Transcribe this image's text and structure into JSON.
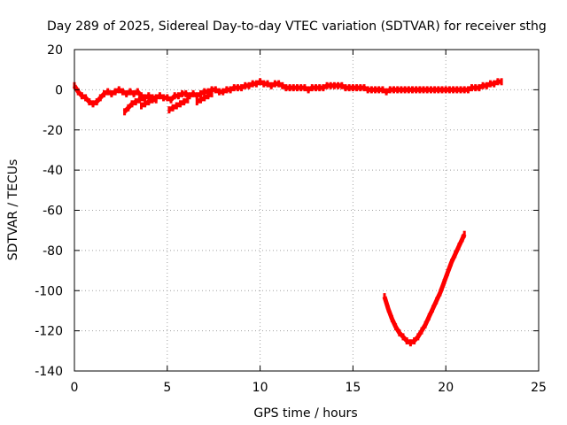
{
  "chart_data": {
    "type": "line",
    "title": "Day 289 of 2025, Sidereal Day-to-day VTEC variation (SDTVAR) for receiver sthg",
    "xlabel": "GPS time / hours",
    "ylabel": "SDTVAR / TECUs",
    "xlim": [
      0,
      25
    ],
    "ylim": [
      -140,
      20
    ],
    "xticks": [
      0,
      5,
      10,
      15,
      20,
      25
    ],
    "yticks": [
      20,
      0,
      -20,
      -40,
      -60,
      -80,
      -100,
      -120,
      -140
    ],
    "grid": true,
    "series": [
      {
        "name": "SDTVAR",
        "color": "#ff0000",
        "segments": [
          [
            [
              0.0,
              2
            ],
            [
              0.2,
              -1
            ],
            [
              0.4,
              -3
            ],
            [
              0.6,
              -4
            ],
            [
              0.8,
              -6
            ],
            [
              1.0,
              -7
            ],
            [
              1.2,
              -6
            ],
            [
              1.4,
              -4
            ],
            [
              1.6,
              -2
            ],
            [
              1.8,
              -1
            ],
            [
              2.0,
              -2
            ],
            [
              2.2,
              -1
            ],
            [
              2.4,
              0
            ],
            [
              2.6,
              -1
            ],
            [
              2.8,
              -2
            ],
            [
              3.0,
              -1
            ],
            [
              3.2,
              -2
            ],
            [
              3.4,
              -1
            ],
            [
              3.6,
              -3
            ],
            [
              3.8,
              -4
            ],
            [
              4.0,
              -3
            ],
            [
              4.2,
              -4
            ],
            [
              4.4,
              -4
            ],
            [
              4.6,
              -3
            ],
            [
              4.8,
              -4
            ],
            [
              5.0,
              -4
            ],
            [
              5.2,
              -5
            ],
            [
              5.4,
              -3
            ],
            [
              5.6,
              -3
            ],
            [
              5.8,
              -2
            ],
            [
              6.0,
              -2
            ],
            [
              6.2,
              -3
            ],
            [
              6.4,
              -2
            ],
            [
              6.6,
              -3
            ],
            [
              6.8,
              -2
            ],
            [
              7.0,
              -1
            ],
            [
              7.2,
              -1
            ],
            [
              7.4,
              0
            ],
            [
              7.6,
              0
            ],
            [
              7.8,
              -1
            ],
            [
              8.0,
              -1
            ],
            [
              8.2,
              0
            ],
            [
              8.4,
              0
            ],
            [
              8.6,
              1
            ],
            [
              8.8,
              1
            ],
            [
              9.0,
              1
            ],
            [
              9.2,
              2
            ],
            [
              9.4,
              2
            ],
            [
              9.6,
              3
            ],
            [
              9.8,
              3
            ],
            [
              10.0,
              4
            ],
            [
              10.2,
              3
            ],
            [
              10.4,
              3
            ],
            [
              10.6,
              2
            ],
            [
              10.8,
              3
            ],
            [
              11.0,
              3
            ],
            [
              11.2,
              2
            ],
            [
              11.4,
              1
            ],
            [
              11.6,
              1
            ],
            [
              11.8,
              1
            ],
            [
              12.0,
              1
            ],
            [
              12.2,
              1
            ],
            [
              12.4,
              1
            ],
            [
              12.6,
              0
            ],
            [
              12.8,
              1
            ],
            [
              13.0,
              1
            ],
            [
              13.2,
              1
            ],
            [
              13.4,
              1
            ],
            [
              13.6,
              2
            ],
            [
              13.8,
              2
            ],
            [
              14.0,
              2
            ],
            [
              14.2,
              2
            ],
            [
              14.4,
              2
            ],
            [
              14.6,
              1
            ],
            [
              14.8,
              1
            ],
            [
              15.0,
              1
            ],
            [
              15.2,
              1
            ],
            [
              15.4,
              1
            ],
            [
              15.6,
              1
            ],
            [
              15.8,
              0
            ],
            [
              16.0,
              0
            ],
            [
              16.2,
              0
            ],
            [
              16.4,
              0
            ],
            [
              16.6,
              0
            ],
            [
              16.8,
              -1
            ],
            [
              17.0,
              0
            ],
            [
              17.2,
              0
            ],
            [
              17.4,
              0
            ],
            [
              17.6,
              0
            ],
            [
              17.8,
              0
            ],
            [
              18.0,
              0
            ],
            [
              18.2,
              0
            ],
            [
              18.4,
              0
            ],
            [
              18.6,
              0
            ],
            [
              18.8,
              0
            ],
            [
              19.0,
              0
            ],
            [
              19.2,
              0
            ],
            [
              19.4,
              0
            ],
            [
              19.6,
              0
            ],
            [
              19.8,
              0
            ],
            [
              20.0,
              0
            ],
            [
              20.2,
              0
            ],
            [
              20.4,
              0
            ],
            [
              20.6,
              0
            ],
            [
              20.8,
              0
            ],
            [
              21.0,
              0
            ],
            [
              21.2,
              0
            ],
            [
              21.4,
              1
            ],
            [
              21.6,
              1
            ],
            [
              21.8,
              1
            ],
            [
              22.0,
              2
            ],
            [
              22.2,
              2
            ],
            [
              22.4,
              3
            ],
            [
              22.6,
              3
            ],
            [
              22.8,
              4
            ],
            [
              23.0,
              4
            ]
          ],
          [
            [
              2.7,
              -11
            ],
            [
              2.9,
              -9
            ],
            [
              3.1,
              -7
            ],
            [
              3.3,
              -6
            ],
            [
              3.5,
              -5
            ],
            [
              3.7,
              -4
            ]
          ],
          [
            [
              3.6,
              -8
            ],
            [
              3.8,
              -7
            ],
            [
              4.0,
              -6
            ],
            [
              4.2,
              -5
            ],
            [
              4.4,
              -5
            ]
          ],
          [
            [
              5.1,
              -10
            ],
            [
              5.3,
              -9
            ],
            [
              5.5,
              -8
            ],
            [
              5.7,
              -7
            ],
            [
              5.9,
              -6
            ],
            [
              6.1,
              -5
            ]
          ],
          [
            [
              6.6,
              -6
            ],
            [
              6.8,
              -5
            ],
            [
              7.0,
              -4
            ],
            [
              7.2,
              -3
            ],
            [
              7.4,
              -2
            ]
          ],
          [
            [
              16.7,
              -103
            ],
            [
              16.9,
              -109
            ],
            [
              17.1,
              -114
            ],
            [
              17.3,
              -118
            ],
            [
              17.5,
              -121
            ],
            [
              17.7,
              -123
            ],
            [
              17.9,
              -125
            ],
            [
              18.1,
              -126
            ],
            [
              18.3,
              -125
            ],
            [
              18.5,
              -123
            ],
            [
              18.7,
              -120
            ],
            [
              18.9,
              -117
            ],
            [
              19.1,
              -113
            ],
            [
              19.3,
              -109
            ],
            [
              19.5,
              -105
            ],
            [
              19.7,
              -101
            ],
            [
              19.9,
              -96
            ],
            [
              20.1,
              -91
            ],
            [
              20.3,
              -86
            ],
            [
              20.5,
              -82
            ],
            [
              20.7,
              -78
            ],
            [
              20.9,
              -74
            ],
            [
              21.0,
              -72
            ]
          ]
        ]
      }
    ]
  }
}
